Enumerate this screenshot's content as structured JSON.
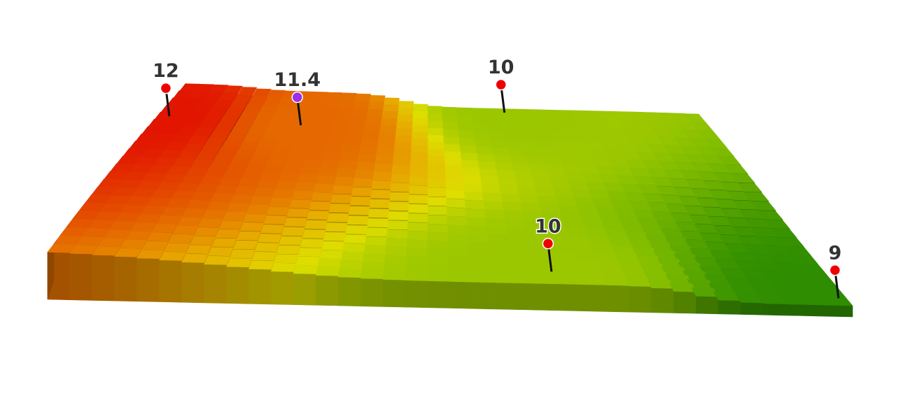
{
  "chart_data": {
    "type": "heatmap",
    "title": "",
    "xlabel": "",
    "ylabel": "",
    "legend": "none",
    "grid": false,
    "value_range": [
      9,
      12
    ],
    "colors": {
      "high": "#e21500",
      "mid_high": "#e7a800",
      "mid": "#dede00",
      "mid_low": "#88c000",
      "low": "#2e8d00"
    },
    "markers": [
      {
        "label": "12",
        "value": 12,
        "row": 0.2,
        "col": 0.02,
        "color": "#ee0000"
      },
      {
        "label": "11.4",
        "value": 11.4,
        "row": 0.2,
        "col": 0.25,
        "color": "#9b30e6"
      },
      {
        "label": "10",
        "value": 10,
        "row": 0.02,
        "col": 0.62,
        "color": "#ee0000"
      },
      {
        "label": "10",
        "value": 10,
        "row": 0.93,
        "col": 0.63,
        "color": "#ee0000"
      },
      {
        "label": "9",
        "value": 9,
        "row": 0.96,
        "col": 0.99,
        "color": "#ee0000"
      }
    ]
  }
}
